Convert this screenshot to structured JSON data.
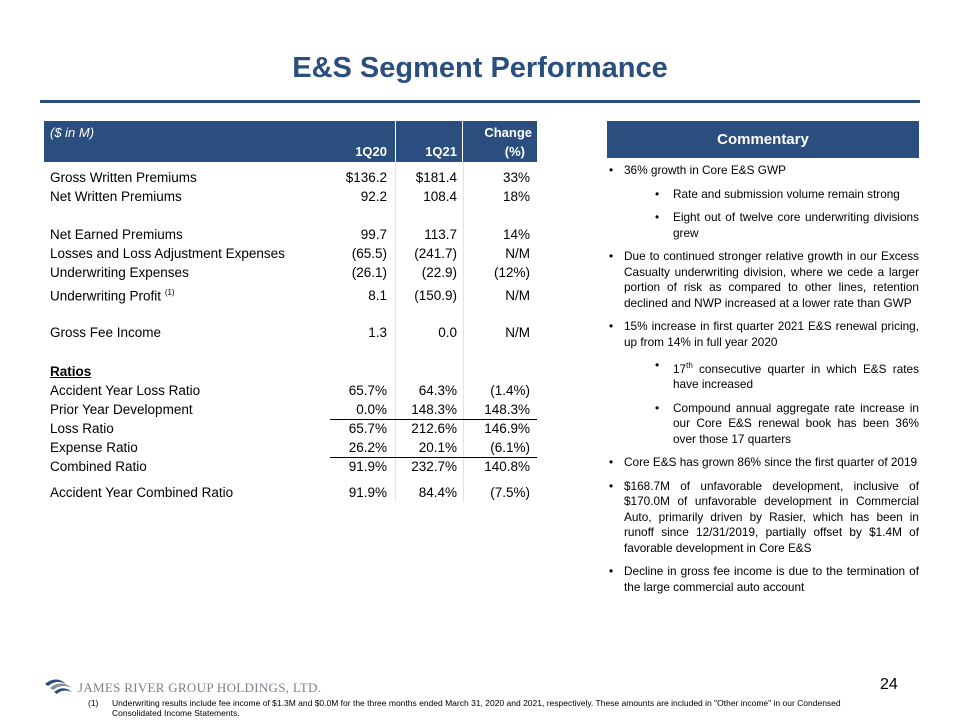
{
  "title": "E&S Segment Performance",
  "table": {
    "unit_label": "($ in M)",
    "col1": "1Q20",
    "col2": "1Q21",
    "col3_line1": "Change",
    "col3_line2": "(%)",
    "rows": [
      {
        "label": "Gross Written Premiums",
        "q20": "$136.2",
        "q21": "$181.4",
        "chg": "33%"
      },
      {
        "label": "Net Written Premiums",
        "q20": "92.2",
        "q21": "108.4",
        "chg": "18%"
      },
      {
        "label": "Net Earned Premiums",
        "q20": "99.7",
        "q21": "113.7",
        "chg": "14%"
      },
      {
        "label": "Losses and Loss Adjustment Expenses",
        "q20": "(65.5)",
        "q21": "(241.7)",
        "chg": "N/M"
      },
      {
        "label": "Underwriting Expenses",
        "q20": "(26.1)",
        "q21": "(22.9)",
        "chg": "(12%)"
      },
      {
        "label": "Underwriting Profit",
        "sup": "(1)",
        "q20": "8.1",
        "q21": "(150.9)",
        "chg": "N/M"
      },
      {
        "label": "Gross Fee Income",
        "q20": "1.3",
        "q21": "0.0",
        "chg": "N/M"
      },
      {
        "label": "Ratios"
      },
      {
        "label": "Accident Year Loss Ratio",
        "q20": "65.7%",
        "q21": "64.3%",
        "chg": "(1.4%)"
      },
      {
        "label": "Prior Year Development",
        "q20": "0.0%",
        "q21": "148.3%",
        "chg": "148.3%"
      },
      {
        "label": "Loss Ratio",
        "q20": "65.7%",
        "q21": "212.6%",
        "chg": "146.9%"
      },
      {
        "label": "Expense Ratio",
        "q20": "26.2%",
        "q21": "20.1%",
        "chg": "(6.1%)"
      },
      {
        "label": "Combined Ratio",
        "q20": "91.9%",
        "q21": "232.7%",
        "chg": "140.8%"
      },
      {
        "label": "Accident Year Combined Ratio",
        "q20": "91.9%",
        "q21": "84.4%",
        "chg": "(7.5%)"
      }
    ]
  },
  "commentary": {
    "header": "Commentary",
    "b1": "36% growth in Core E&S GWP",
    "b1a": "Rate and submission volume remain strong",
    "b1b": "Eight out of twelve core underwriting divisions grew",
    "b2": "Due to continued stronger relative growth in our Excess Casualty underwriting division, where we cede a larger portion of risk as compared to other lines, retention declined and NWP increased at a lower rate than GWP",
    "b3": "15% increase in first quarter 2021 E&S renewal pricing, up from 14% in full year 2020",
    "b3a_pre": "17",
    "b3a_sup": "th",
    "b3a_post": " consecutive quarter in which E&S rates have increased",
    "b3b": "Compound annual aggregate rate increase in our Core E&S renewal book has been 36% over those 17 quarters",
    "b4": "Core E&S has grown 86% since the first quarter of 2019",
    "b5": "$168.7M of unfavorable development, inclusive of $170.0M of unfavorable development in Commercial Auto, primarily driven by Rasier, which has been in runoff since 12/31/2019, partially offset by $1.4M of favorable development in Core E&S",
    "b6": "Decline in gross fee income is due to the termination of the large commercial auto account"
  },
  "footer": {
    "logo_text": "JAMES RIVER GROUP HOLDINGS, LTD.",
    "page_number": "24",
    "footnote_mark": "(1)",
    "footnote_text": "Underwriting results include fee income of $1.3M and $0.0M for the three months ended March 31, 2020 and 2021, respectively. These amounts are included in \"Other income\" in our Condensed Consolidated Income Statements."
  },
  "colors": {
    "brand": "#2a4e7e"
  }
}
